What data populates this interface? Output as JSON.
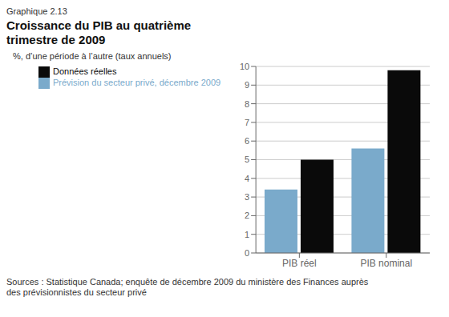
{
  "chart_data": {
    "type": "bar",
    "subtitle": "Graphique 2.13",
    "title": "Croissance du PIB au quatrième\ntrimestre de 2009",
    "ylabel": "%, d’une période à l’autre (taux annuels)",
    "categories": [
      "PIB réel",
      "PIB nominal"
    ],
    "series": [
      {
        "name": "Prévision du secteur privé, décembre 2009",
        "color": "#7aaacb",
        "values": [
          3.4,
          5.6
        ]
      },
      {
        "name": "Données réelles",
        "color": "#0a0a0a",
        "values": [
          5.0,
          9.8
        ]
      }
    ],
    "ylim": [
      0,
      10
    ],
    "yticks": [
      0,
      1,
      2,
      3,
      4,
      5,
      6,
      7,
      8,
      9,
      10
    ],
    "grid": true,
    "legend": "upper left",
    "annotations": [
      "Sources : Statistique Canada; enquête de décembre 2009 du ministère des Finances auprès\ndes prévisionnistes du secteur privé"
    ]
  }
}
